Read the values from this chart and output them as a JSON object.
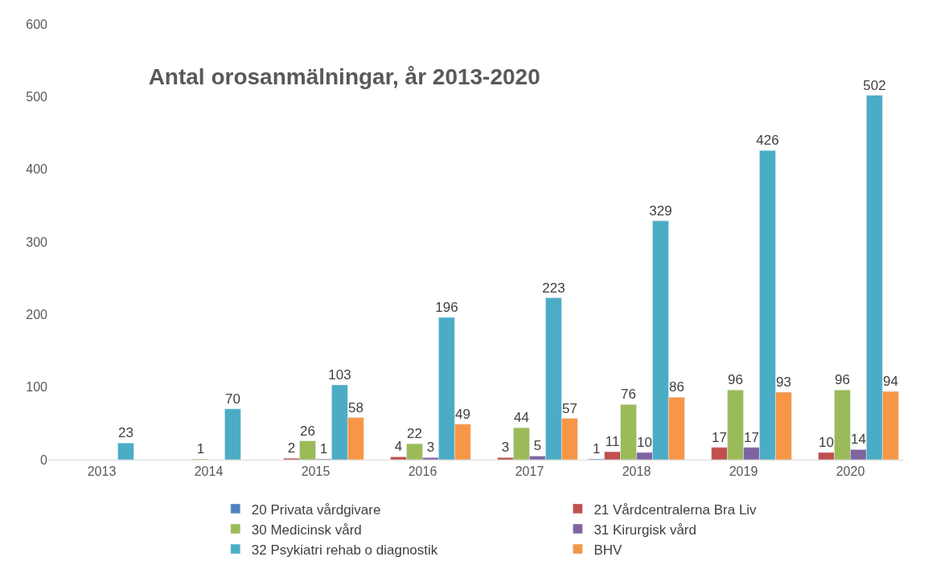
{
  "chart_data": {
    "type": "bar",
    "title": "Antal orosanmälningar, år 2013-2020",
    "categories": [
      "2013",
      "2014",
      "2015",
      "2016",
      "2017",
      "2018",
      "2019",
      "2020"
    ],
    "series": [
      {
        "name": "20 Privata vårdgivare",
        "color": "#4f81bd",
        "values": [
          null,
          null,
          null,
          null,
          null,
          1,
          null,
          null
        ]
      },
      {
        "name": "21 Vårdcentralerna Bra Liv",
        "color": "#c0504d",
        "values": [
          null,
          null,
          2,
          4,
          3,
          11,
          17,
          10
        ]
      },
      {
        "name": "30 Medicinsk vård",
        "color": "#9bbb59",
        "values": [
          null,
          1,
          26,
          22,
          44,
          76,
          96,
          96
        ]
      },
      {
        "name": "31 Kirurgisk vård",
        "color": "#8064a2",
        "values": [
          null,
          null,
          1,
          3,
          5,
          10,
          17,
          14
        ]
      },
      {
        "name": "32 Psykiatri rehab o diagnostik",
        "color": "#4bacc6",
        "values": [
          23,
          70,
          103,
          196,
          223,
          329,
          426,
          502
        ]
      },
      {
        "name": "BHV",
        "color": "#f79646",
        "values": [
          null,
          null,
          58,
          49,
          57,
          86,
          93,
          94
        ]
      }
    ],
    "ylim": [
      0,
      600
    ],
    "yticks": [
      0,
      100,
      200,
      300,
      400,
      500,
      600
    ],
    "data_labels": true,
    "legend": "bottom"
  }
}
